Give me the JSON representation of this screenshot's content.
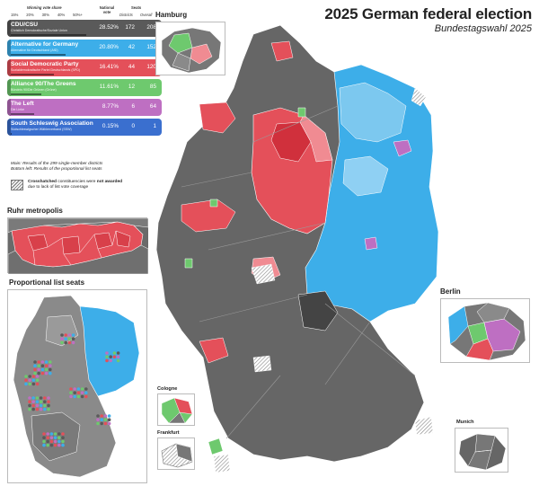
{
  "title": "2025 German federal election",
  "subtitle": "Bundestagswahl 2025",
  "legend": {
    "vote_share_label": "Winning vote share",
    "vote_share_ticks": [
      "15%",
      "20%",
      "30%",
      "40%",
      "50%+"
    ],
    "national_vote_label": "National vote",
    "seats_label": "Seats",
    "districts_label": "Districts",
    "overall_label": "Overall",
    "parties": [
      {
        "name": "CDU/CSU",
        "subtitle": "Christlich Demokratische/Soziale Union",
        "vote": "28.52%",
        "districts": "172",
        "overall": "208",
        "color": "#5a5a5a"
      },
      {
        "name": "Alternative for Germany",
        "subtitle": "Alternative für Deutschland (AfD)",
        "vote": "20.80%",
        "districts": "42",
        "overall": "152",
        "color": "#3daee9"
      },
      {
        "name": "Social Democratic Party",
        "subtitle": "Sozialdemokratische Partei Deutschlands (SPD)",
        "vote": "16.41%",
        "districts": "44",
        "overall": "120",
        "color": "#e4505a"
      },
      {
        "name": "Alliance 90/The Greens",
        "subtitle": "Bündnis 90/Die Grünen (Grüne)",
        "vote": "11.61%",
        "districts": "12",
        "overall": "85",
        "color": "#6ec96e"
      },
      {
        "name": "The Left",
        "subtitle": "Die Linke",
        "vote": "8.77%",
        "districts": "6",
        "overall": "64",
        "color": "#be6fc2"
      },
      {
        "name": "South Schleswig Association",
        "subtitle": "Südschleswigscher Wählerverband (SSW)",
        "vote": "0.15%",
        "districts": "0",
        "overall": "1",
        "color": "#3a6fcf"
      }
    ]
  },
  "notes": {
    "main": "Main: Results of the 299 single-member districts",
    "bottom_left": "Bottom left: Results of the proportional list seats",
    "hatch_bold": "Crosshatched",
    "hatch_mid": " constituencies were ",
    "hatch_bold2": "not awarded",
    "hatch_tail": "due to lack of list vote coverage"
  },
  "insets": {
    "hamburg": "Hamburg",
    "ruhr": "Ruhr metropolis",
    "proportional": "Proportional list seats",
    "berlin": "Berlin",
    "cologne": "Cologne",
    "frankfurt": "Frankfurt",
    "munich": "Munich"
  },
  "colors": {
    "cdu": "#5a5a5a",
    "cdu_light": "#8a8a8a",
    "afd": "#3daee9",
    "afd_light": "#8fd0f3",
    "spd": "#e4505a",
    "spd_light": "#f08b92",
    "greens": "#6ec96e",
    "left": "#be6fc2",
    "ssw": "#3a6fcf"
  }
}
